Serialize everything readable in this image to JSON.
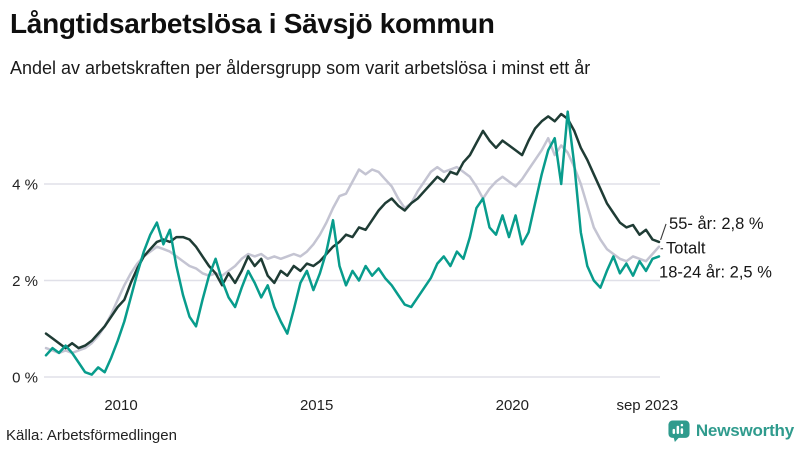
{
  "chart_data": {
    "type": "line",
    "title": "Långtidsarbetslösa i Sävsjö kommun",
    "subtitle": "Andel av arbetskraften per åldersgrupp som varit arbetslösa i minst ett år",
    "source": "Källa: Arbetsförmedlingen",
    "unit": "%",
    "x_start": 2008.083,
    "x_step_years": 0.16667,
    "x_end": 2023.75,
    "ylim": [
      0,
      5.7
    ],
    "grid": "horizontal-only",
    "legend_position": "end-of-line-labels",
    "y_ticks": [
      {
        "label": "0 %",
        "value": 0
      },
      {
        "label": "2 %",
        "value": 2
      },
      {
        "label": "4 %",
        "value": 4
      }
    ],
    "x_ticks": [
      {
        "label": "2010",
        "year": 2010
      },
      {
        "label": "2015",
        "year": 2015
      },
      {
        "label": "2020",
        "year": 2020
      },
      {
        "label": "sep 2023",
        "year": 2023.45
      }
    ],
    "series": [
      {
        "name": "Totalt",
        "color": "#c4c4d2",
        "end_label": {
          "text": "Totalt",
          "dx": 7,
          "dy": 7,
          "connector": true
        },
        "values": [
          0.6,
          0.55,
          0.5,
          0.55,
          0.5,
          0.55,
          0.6,
          0.7,
          0.85,
          1.05,
          1.3,
          1.6,
          1.9,
          2.15,
          2.35,
          2.5,
          2.6,
          2.7,
          2.65,
          2.6,
          2.5,
          2.4,
          2.3,
          2.25,
          2.15,
          2.1,
          2.15,
          2.1,
          2.2,
          2.3,
          2.45,
          2.55,
          2.5,
          2.55,
          2.45,
          2.5,
          2.45,
          2.5,
          2.55,
          2.5,
          2.6,
          2.75,
          2.95,
          3.2,
          3.5,
          3.75,
          3.8,
          4.05,
          4.3,
          4.2,
          4.3,
          4.25,
          4.1,
          3.95,
          3.7,
          3.5,
          3.6,
          3.85,
          4.05,
          4.25,
          4.35,
          4.25,
          4.3,
          4.35,
          4.25,
          4.15,
          3.95,
          3.7,
          3.9,
          4.05,
          4.15,
          4.05,
          3.95,
          4.1,
          4.3,
          4.5,
          4.7,
          4.95,
          4.6,
          4.8,
          4.65,
          4.35,
          4.0,
          3.55,
          3.1,
          2.85,
          2.65,
          2.55,
          2.45,
          2.4,
          2.5,
          2.45,
          2.4,
          2.55,
          2.7
        ]
      },
      {
        "name": "55- år",
        "color": "#1f3c35",
        "end_label": {
          "text": "55- år: 2,8 %",
          "dx": 10,
          "dy": -13,
          "connector": true
        },
        "values": [
          0.9,
          0.8,
          0.7,
          0.6,
          0.7,
          0.6,
          0.65,
          0.75,
          0.9,
          1.05,
          1.25,
          1.45,
          1.6,
          1.95,
          2.25,
          2.5,
          2.65,
          2.8,
          2.85,
          2.8,
          2.9,
          2.9,
          2.85,
          2.7,
          2.5,
          2.3,
          2.15,
          1.9,
          2.15,
          1.95,
          2.2,
          2.5,
          2.3,
          2.45,
          2.1,
          1.95,
          2.2,
          2.1,
          2.3,
          2.2,
          2.35,
          2.3,
          2.4,
          2.55,
          2.7,
          2.8,
          2.95,
          2.9,
          3.1,
          3.05,
          3.25,
          3.45,
          3.6,
          3.7,
          3.55,
          3.45,
          3.6,
          3.7,
          3.85,
          4.0,
          4.15,
          4.05,
          4.25,
          4.2,
          4.45,
          4.6,
          4.85,
          5.1,
          4.9,
          4.75,
          4.9,
          4.8,
          4.7,
          4.6,
          4.9,
          5.15,
          5.3,
          5.4,
          5.3,
          5.45,
          5.35,
          5.1,
          4.75,
          4.5,
          4.2,
          3.9,
          3.6,
          3.4,
          3.2,
          3.1,
          3.15,
          2.95,
          3.05,
          2.85,
          2.8
        ]
      },
      {
        "name": "18-24 år",
        "color": "#089c8c",
        "end_label": {
          "text": "18-24 år: 2,5 %",
          "dx": 0,
          "dy": 21,
          "connector": false
        },
        "values": [
          0.45,
          0.6,
          0.5,
          0.65,
          0.5,
          0.3,
          0.1,
          0.05,
          0.2,
          0.1,
          0.4,
          0.75,
          1.15,
          1.65,
          2.15,
          2.6,
          2.95,
          3.2,
          2.75,
          3.05,
          2.3,
          1.7,
          1.25,
          1.05,
          1.6,
          2.1,
          2.45,
          2.0,
          1.65,
          1.45,
          1.85,
          2.2,
          1.95,
          1.65,
          1.9,
          1.45,
          1.15,
          0.9,
          1.4,
          1.95,
          2.2,
          1.8,
          2.15,
          2.6,
          3.25,
          2.3,
          1.9,
          2.2,
          2.0,
          2.3,
          2.1,
          2.25,
          2.05,
          1.9,
          1.7,
          1.5,
          1.45,
          1.65,
          1.85,
          2.05,
          2.35,
          2.5,
          2.3,
          2.6,
          2.45,
          2.9,
          3.5,
          3.7,
          3.1,
          2.95,
          3.35,
          2.9,
          3.35,
          2.75,
          3.0,
          3.6,
          4.2,
          4.7,
          4.95,
          4.0,
          5.5,
          4.4,
          3.0,
          2.3,
          2.0,
          1.85,
          2.2,
          2.5,
          2.15,
          2.35,
          2.1,
          2.4,
          2.2,
          2.45,
          2.5
        ]
      }
    ],
    "end_values_shown": {
      "55- år": "2,8 %",
      "18-24 år": "2,5 %"
    }
  },
  "footer": {
    "brand": "Newsworthy",
    "brand_color": "#2f9b8d"
  },
  "colors": {
    "grid": "#e0e0e8",
    "tick_text": "#222222",
    "annotation_text": "#161616",
    "connector": "#3a3a3a"
  }
}
